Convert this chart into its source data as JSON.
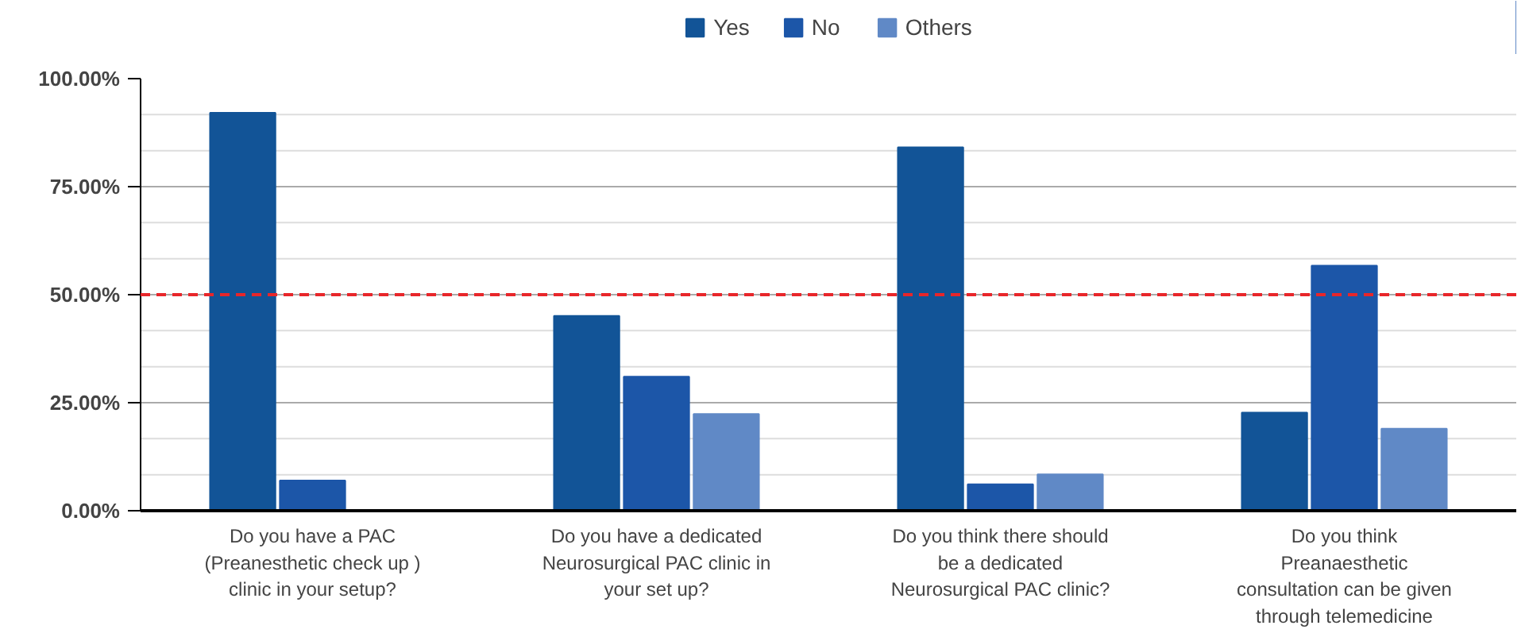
{
  "chart_data": {
    "type": "bar",
    "categories": [
      "Do you have a PAC\n(Preanesthetic check up )\nclinic in your setup?",
      "Do you have a dedicated\nNeurosurgical PAC clinic in\nyour set up?",
      "Do you think there should\nbe a dedicated\nNeurosurgical PAC clinic?",
      "Do you think\nPreanaesthetic\nconsultation can be given\nthrough telemedicine"
    ],
    "series": [
      {
        "name": "Yes",
        "color": "#125497",
        "values": [
          92.1,
          45.1,
          84.1,
          22.7
        ]
      },
      {
        "name": "No",
        "color": "#1c56a8",
        "values": [
          7.0,
          31.0,
          6.1,
          56.7
        ]
      },
      {
        "name": "Others",
        "color": "#6089c6",
        "values": [
          null,
          22.4,
          8.4,
          19.0
        ]
      }
    ],
    "ylim": [
      0,
      100
    ],
    "yticks": [
      {
        "value": 0,
        "label": "0.00%"
      },
      {
        "value": 25,
        "label": "25.00%"
      },
      {
        "value": 50,
        "label": "50.00%"
      },
      {
        "value": 75,
        "label": "75.00%"
      },
      {
        "value": 100,
        "label": "100.00%"
      }
    ],
    "ref_lines": [
      {
        "axis": "y",
        "value": 50,
        "color": "#e8262a",
        "line_style": "dashed"
      }
    ],
    "grid": "y",
    "legend": "top"
  }
}
